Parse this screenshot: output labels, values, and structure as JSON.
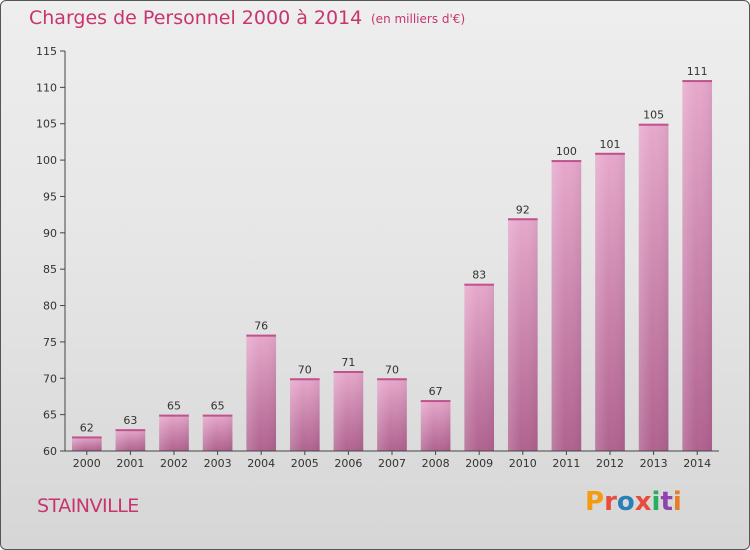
{
  "header": {
    "title": "Charges de Personnel 2000 à 2014",
    "subtitle": "(en milliers d'€)"
  },
  "footer": {
    "commune": "STAINVILLE",
    "logo_text": "Proxiti",
    "logo_colors": [
      "#f39c12",
      "#e74c3c",
      "#2980b9",
      "#e74c3c",
      "#27ae60",
      "#8e44ad",
      "#e67e22"
    ]
  },
  "chart_data": {
    "type": "bar",
    "categories": [
      "2000",
      "2001",
      "2002",
      "2003",
      "2004",
      "2005",
      "2006",
      "2007",
      "2008",
      "2009",
      "2010",
      "2011",
      "2012",
      "2013",
      "2014"
    ],
    "values": [
      62,
      63,
      65,
      65,
      76,
      70,
      71,
      70,
      67,
      83,
      92,
      100,
      101,
      105,
      111
    ],
    "ylim": [
      60,
      115
    ],
    "yticks": [
      60,
      65,
      70,
      75,
      80,
      85,
      90,
      95,
      100,
      105,
      110,
      115
    ],
    "bar_color": "#d98cb3"
  }
}
